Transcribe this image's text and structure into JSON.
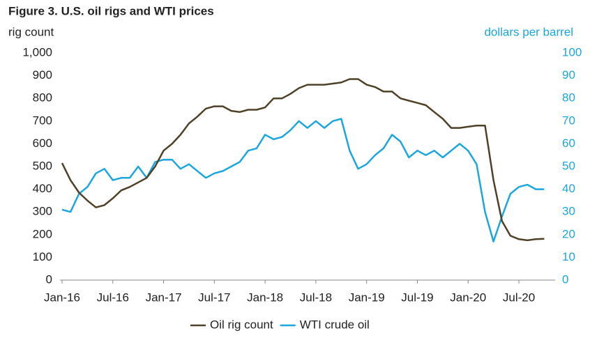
{
  "chart_data": {
    "type": "line",
    "title": "Figure 3. U.S. oil rigs and WTI prices",
    "y_label": "rig count",
    "y2_label": "dollars per barrel",
    "categories": [
      "Jan-16",
      null,
      null,
      null,
      null,
      null,
      "Jul-16",
      null,
      null,
      null,
      null,
      null,
      "Jan-17",
      null,
      null,
      null,
      null,
      null,
      "Jul-17",
      null,
      null,
      null,
      null,
      null,
      "Jan-18",
      null,
      null,
      null,
      null,
      null,
      "Jul-18",
      null,
      null,
      null,
      null,
      null,
      "Jan-19",
      null,
      null,
      null,
      null,
      null,
      "Jul-19",
      null,
      null,
      null,
      null,
      null,
      "Jan-20",
      null,
      null,
      null,
      null,
      null,
      "Jul-20",
      null,
      null,
      null
    ],
    "series": [
      {
        "name": "Oil rig count",
        "color": "#4f4127",
        "axis": "y",
        "values": [
          515,
          440,
          385,
          350,
          320,
          330,
          360,
          395,
          410,
          430,
          450,
          500,
          570,
          600,
          640,
          690,
          720,
          755,
          765,
          765,
          745,
          740,
          750,
          750,
          760,
          800,
          800,
          820,
          845,
          860,
          860,
          860,
          865,
          870,
          885,
          885,
          860,
          850,
          830,
          830,
          800,
          790,
          780,
          770,
          740,
          710,
          670,
          670,
          675,
          680,
          680,
          440,
          260,
          195,
          180,
          175,
          180,
          182
        ]
      },
      {
        "name": "WTI crude oil",
        "color": "#1ba7dd",
        "axis": "y2",
        "values": [
          31,
          30,
          38,
          41,
          47,
          49,
          44,
          45,
          45,
          50,
          45,
          52,
          53,
          53,
          49,
          51,
          48,
          45,
          47,
          48,
          50,
          52,
          57,
          58,
          64,
          62,
          63,
          66,
          70,
          67,
          70,
          67,
          70,
          71,
          57,
          49,
          51,
          55,
          58,
          64,
          61,
          54,
          57,
          55,
          57,
          54,
          57,
          60,
          57,
          51,
          30,
          17,
          28,
          38,
          41,
          42,
          40,
          40
        ]
      }
    ],
    "ylim": [
      0,
      1000
    ],
    "yticks": [
      0,
      100,
      200,
      300,
      400,
      500,
      600,
      700,
      800,
      900,
      {
        "value": 1000,
        "label": "1,000"
      }
    ],
    "y2lim": [
      0,
      100
    ],
    "y2ticks": [
      0,
      10,
      20,
      30,
      40,
      50,
      60,
      70,
      80,
      90,
      100
    ],
    "grid": false,
    "legend": "bottom"
  }
}
